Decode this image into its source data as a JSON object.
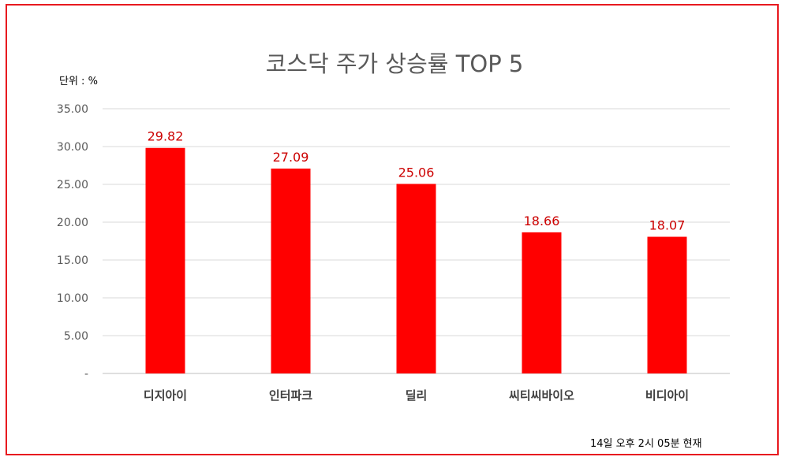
{
  "chart_data": {
    "type": "bar",
    "title": "코스닥 주가 상승률 TOP 5",
    "unit_label": "단위 : %",
    "footnote": "14일 오후 2시 05분 현재",
    "categories": [
      "디지아이",
      "인터파크",
      "딜리",
      "씨티씨바이오",
      "비디아이"
    ],
    "values": [
      29.82,
      27.09,
      25.06,
      18.66,
      18.07
    ],
    "data_labels": [
      "29.82",
      "27.09",
      "25.06",
      "18.66",
      "18.07"
    ],
    "y_ticks": [
      "-",
      "5.00",
      "10.00",
      "15.00",
      "20.00",
      "25.00",
      "30.00",
      "35.00"
    ],
    "ylim": [
      0,
      35
    ],
    "grid": true,
    "bar_color": "#ff0000",
    "label_color": "#cc0000",
    "frame_color": "#e8191f"
  }
}
